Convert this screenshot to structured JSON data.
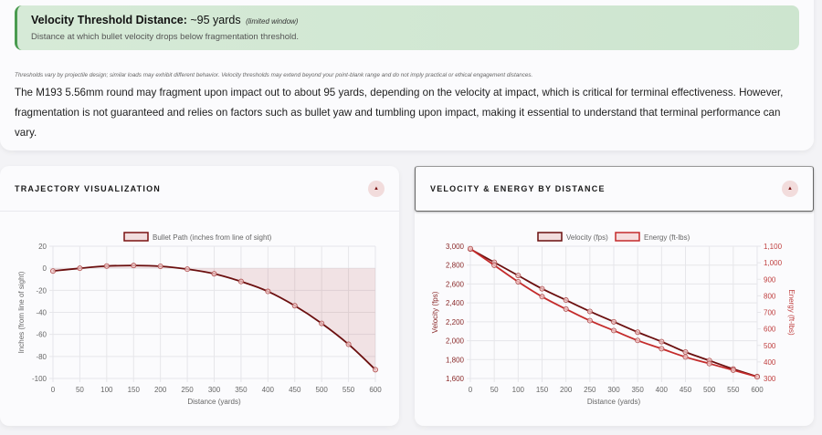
{
  "banner": {
    "title": "Velocity Threshold Distance:",
    "value": "~95 yards",
    "note": "(limited window)",
    "subtitle": "Distance at which bullet velocity drops below fragmentation threshold.",
    "accent": "#4a9b50"
  },
  "disclaimer": "Thresholds vary by projectile design; similar loads may exhibit different behavior. Velocity thresholds may extend beyond your point-blank range and do not imply practical or ethical engagement distances.",
  "body_text": "The M193 5.56mm round may fragment upon impact out to about 95 yards, depending on the velocity at impact, which is critical for terminal effectiveness. However, fragmentation is not guaranteed and relies on factors such as bullet yaw and tumbling upon impact, making it essential to understand that terminal performance can vary.",
  "trajectory_card": {
    "title": "TRAJECTORY VISUALIZATION",
    "toggle_icon": "▲"
  },
  "velocity_card": {
    "title": "VELOCITY & ENERGY BY DISTANCE",
    "toggle_icon": "▲"
  },
  "chart_data": [
    {
      "type": "area",
      "title": "",
      "legend": [
        "Bullet Path (inches from line of sight)"
      ],
      "legend_position": "top",
      "xlabel": "Distance (yards)",
      "ylabel": "Inches (from line of sight)",
      "x": [
        0,
        50,
        100,
        150,
        200,
        250,
        300,
        350,
        400,
        450,
        500,
        550,
        600
      ],
      "series": [
        {
          "name": "Bullet Path (inches from line of sight)",
          "color": "#6b0f0f",
          "fill": "rgba(180,60,60,0.13)",
          "values": [
            -2.5,
            0,
            2,
            2.5,
            1.8,
            -0.8,
            -5,
            -12,
            -21,
            -34,
            -50,
            -69,
            -92
          ]
        }
      ],
      "ylim": [
        -100,
        20
      ],
      "yticks": [
        20,
        0,
        -20,
        -40,
        -60,
        -80,
        -100
      ],
      "xticks": [
        0,
        50,
        100,
        150,
        200,
        250,
        300,
        350,
        400,
        450,
        500,
        550,
        600
      ],
      "grid": true
    },
    {
      "type": "line",
      "title": "",
      "legend": [
        "Velocity (fps)",
        "Energy (ft-lbs)"
      ],
      "legend_position": "top",
      "xlabel": "Distance (yards)",
      "ylabel": "Velocity (fps)",
      "ylabel_right": "Energy (ft-lbs)",
      "x": [
        0,
        50,
        100,
        150,
        200,
        250,
        300,
        350,
        400,
        450,
        500,
        550,
        600
      ],
      "series": [
        {
          "name": "Velocity (fps)",
          "axis": "left",
          "color": "#6b0f0f",
          "values": [
            2970,
            2830,
            2690,
            2550,
            2430,
            2310,
            2200,
            2090,
            1990,
            1880,
            1790,
            1700,
            1620
          ]
        },
        {
          "name": "Energy (ft-lbs)",
          "axis": "right",
          "color": "#c42b2b",
          "values": [
            1085,
            985,
            885,
            795,
            720,
            650,
            590,
            530,
            480,
            430,
            390,
            350,
            310
          ]
        }
      ],
      "ylim": [
        1600,
        3000
      ],
      "ylim_right": [
        300,
        1100
      ],
      "yticks": [
        "3,000",
        "2,800",
        "2,600",
        "2,400",
        "2,200",
        "2,000",
        "1,800",
        "1,600"
      ],
      "yticks_right": [
        "1,100",
        "1,000",
        "900",
        "800",
        "700",
        "600",
        "500",
        "400",
        "300"
      ],
      "xticks": [
        0,
        50,
        100,
        150,
        200,
        250,
        300,
        350,
        400,
        450,
        500,
        550,
        600
      ],
      "grid": true
    }
  ]
}
